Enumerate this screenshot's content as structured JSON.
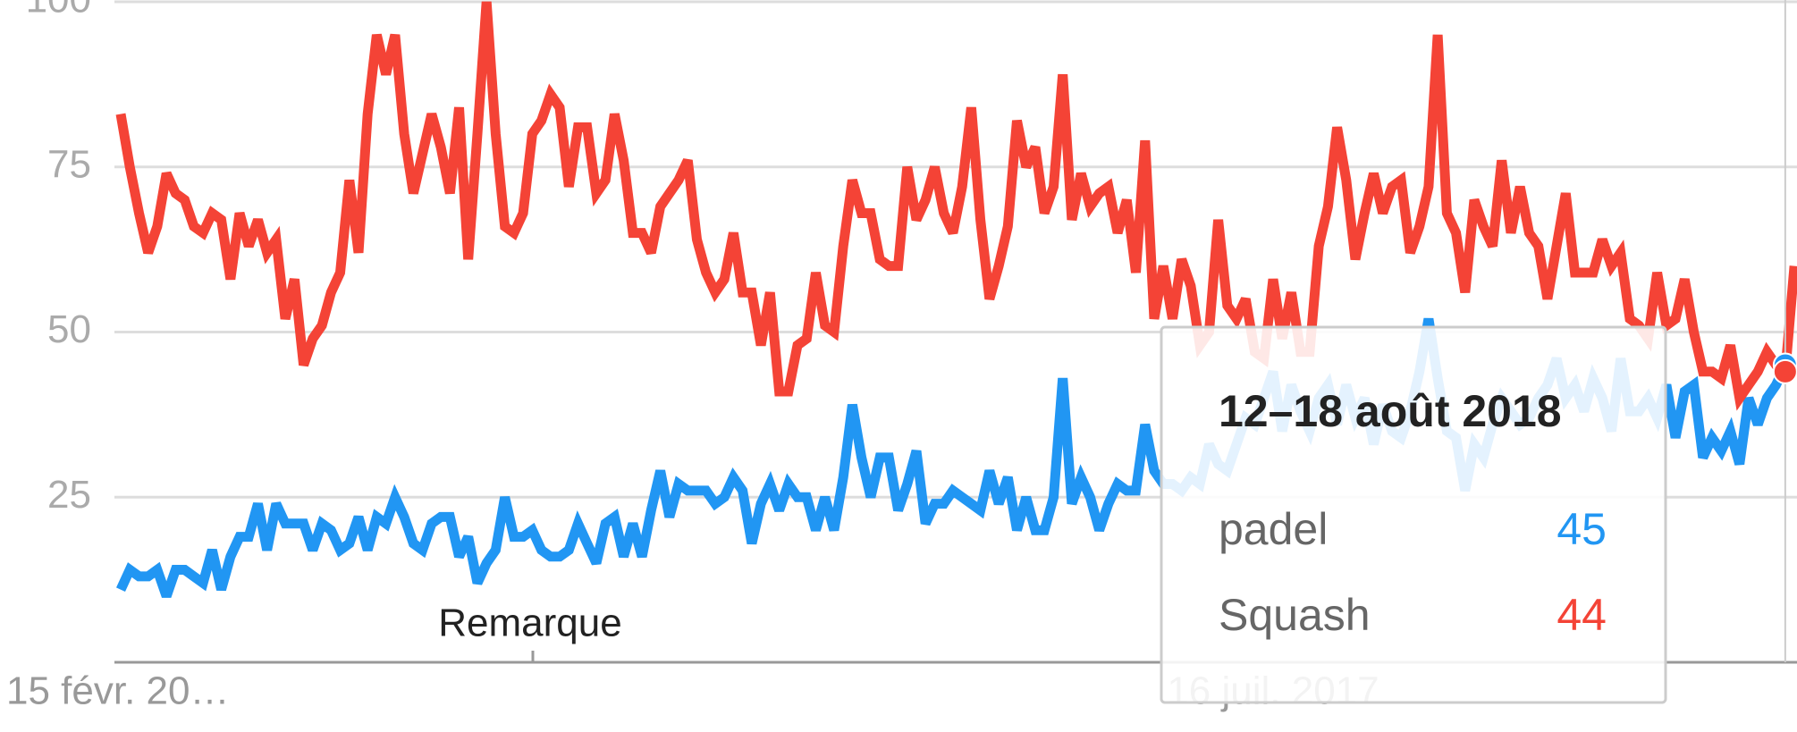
{
  "chart_data": {
    "type": "line",
    "categories": [
      "15 févr. 20…",
      null,
      null,
      null,
      null,
      null,
      null,
      null,
      null,
      null,
      null,
      null,
      null,
      null,
      null,
      null,
      null,
      null,
      null,
      null,
      null,
      null,
      null,
      null,
      null,
      null,
      null,
      null,
      null,
      null,
      null,
      null,
      null,
      null,
      null,
      null,
      null,
      null,
      null,
      null,
      null,
      null,
      null,
      null,
      null,
      null,
      null,
      null,
      null,
      null,
      null,
      null,
      null,
      null,
      null,
      null,
      null,
      null,
      null,
      null,
      null,
      null,
      null,
      null,
      null,
      null,
      null,
      null,
      null,
      null,
      null,
      null,
      null,
      null,
      null,
      null,
      null,
      null,
      null,
      null,
      null,
      null,
      null,
      null,
      null,
      null,
      null,
      null,
      null,
      null,
      null,
      null,
      null,
      null,
      null,
      null,
      null,
      null,
      null,
      null,
      null,
      null,
      null,
      null,
      null,
      null,
      null,
      null,
      null,
      null,
      null,
      null,
      null,
      null,
      null,
      null,
      null,
      null,
      null,
      null,
      null,
      null,
      null,
      null,
      null,
      null,
      "16 juil. 2017",
      null,
      null,
      null,
      null,
      null,
      null,
      null,
      null,
      null,
      null,
      null,
      null,
      null,
      null,
      null,
      null,
      null,
      null,
      null,
      null,
      null,
      null,
      null,
      null,
      null,
      null,
      null,
      null,
      null,
      null,
      null,
      null,
      null,
      null,
      null,
      null,
      null,
      null,
      null,
      null,
      null,
      null,
      null,
      null,
      null,
      null,
      null,
      null,
      null,
      null,
      null,
      null,
      null,
      null,
      null,
      null,
      null
    ],
    "series": [
      {
        "name": "padel",
        "color": "#2196f3",
        "values": [
          11,
          14,
          13,
          13,
          14,
          10,
          14,
          14,
          13,
          12,
          17,
          11,
          16,
          19,
          19,
          24,
          17,
          24,
          21,
          21,
          21,
          17,
          21,
          20,
          17,
          18,
          22,
          17,
          22,
          21,
          25,
          22,
          18,
          17,
          21,
          22,
          22,
          16,
          19,
          12,
          15,
          17,
          25,
          19,
          19,
          20,
          17,
          16,
          16,
          17,
          21,
          18,
          15,
          21,
          22,
          16,
          21,
          16,
          23,
          29,
          22,
          27,
          26,
          26,
          26,
          24,
          25,
          28,
          26,
          18,
          24,
          27,
          23,
          27,
          25,
          25,
          20,
          25,
          20,
          28,
          39,
          31,
          25,
          31,
          31,
          23,
          27,
          32,
          21,
          24,
          24,
          26,
          25,
          24,
          23,
          29,
          24,
          28,
          20,
          25,
          20,
          20,
          25,
          43,
          24,
          28,
          25,
          20,
          24,
          27,
          26,
          26,
          36,
          29,
          27,
          27,
          26,
          28,
          27,
          33,
          30,
          29,
          33,
          37,
          36,
          40,
          44,
          35,
          42,
          38,
          35,
          40,
          42,
          36,
          42,
          37,
          40,
          33,
          39,
          35,
          34,
          38,
          44,
          52,
          43,
          35,
          34,
          26,
          33,
          31,
          36,
          40,
          38,
          36,
          37,
          40,
          42,
          46,
          40,
          42,
          38,
          43,
          40,
          35,
          46,
          38,
          38,
          40,
          37,
          42,
          34,
          41,
          42,
          31,
          34,
          32,
          35,
          30,
          40,
          36,
          40,
          42,
          45,
          46
        ]
      },
      {
        "name": "Squash",
        "color": "#f44336",
        "values": [
          83,
          75,
          68,
          62,
          66,
          74,
          71,
          70,
          66,
          65,
          68,
          67,
          58,
          68,
          63,
          67,
          62,
          64,
          52,
          58,
          45,
          49,
          51,
          56,
          59,
          73,
          62,
          83,
          95,
          89,
          95,
          80,
          71,
          77,
          83,
          78,
          71,
          84,
          61,
          80,
          100,
          80,
          66,
          65,
          68,
          80,
          82,
          86,
          84,
          72,
          81,
          81,
          71,
          73,
          83,
          76,
          65,
          65,
          62,
          69,
          71,
          73,
          76,
          64,
          59,
          56,
          58,
          65,
          56,
          56,
          48,
          56,
          41,
          41,
          48,
          49,
          59,
          51,
          50,
          63,
          73,
          68,
          68,
          61,
          60,
          60,
          75,
          67,
          70,
          75,
          68,
          65,
          72,
          84,
          67,
          55,
          60,
          66,
          82,
          75,
          78,
          68,
          72,
          89,
          67,
          74,
          69,
          71,
          72,
          65,
          70,
          59,
          79,
          52,
          60,
          52,
          61,
          57,
          48,
          50,
          67,
          54,
          52,
          55,
          47,
          46,
          58,
          49,
          56,
          47,
          47,
          63,
          69,
          81,
          73,
          61,
          68,
          74,
          68,
          72,
          73,
          62,
          66,
          72,
          95,
          68,
          65,
          56,
          70,
          66,
          63,
          76,
          65,
          72,
          65,
          63,
          55,
          63,
          71,
          59,
          59,
          59,
          64,
          60,
          62,
          52,
          51,
          49,
          59,
          51,
          52,
          58,
          50,
          44,
          44,
          43,
          48,
          40,
          42,
          44,
          47,
          45,
          44,
          60
        ]
      }
    ],
    "ylim": [
      0,
      100
    ],
    "yticks": [
      25,
      50,
      75,
      100
    ],
    "grid": true,
    "annotation": "Remarque",
    "tooltip_title": "12–18 août 2018"
  }
}
